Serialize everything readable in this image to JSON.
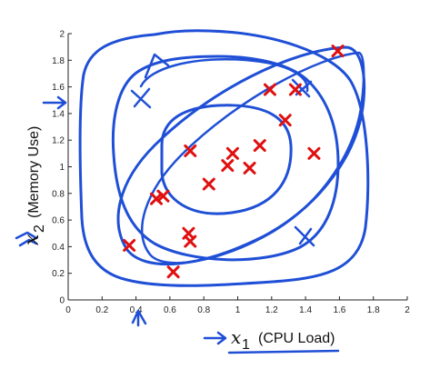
{
  "chart_data": {
    "type": "scatter",
    "xlim": [
      0,
      2
    ],
    "ylim": [
      0,
      2
    ],
    "x_ticks": [
      "0",
      "0.2",
      "0.4",
      "0.6",
      "0.8",
      "1",
      "1.2",
      "1.4",
      "1.6",
      "1.8",
      "2"
    ],
    "y_ticks": [
      "0",
      "0.2",
      "0.4",
      "0.6",
      "0.8",
      "1",
      "1.2",
      "1.4",
      "1.6",
      "1.8",
      "2"
    ],
    "xlabel": {
      "var": "x",
      "sub": "1",
      "text": "(CPU Load)"
    },
    "ylabel": {
      "var": "x",
      "sub": "2",
      "text": "(Memory Use)"
    },
    "marker_color": "#e01010",
    "annotation_color": "#1f4fd6",
    "points": [
      {
        "x": 0.36,
        "y": 0.41
      },
      {
        "x": 0.52,
        "y": 0.76
      },
      {
        "x": 0.56,
        "y": 0.78
      },
      {
        "x": 0.62,
        "y": 0.21
      },
      {
        "x": 0.71,
        "y": 0.5
      },
      {
        "x": 0.72,
        "y": 0.44
      },
      {
        "x": 0.72,
        "y": 1.12
      },
      {
        "x": 0.83,
        "y": 0.87
      },
      {
        "x": 0.94,
        "y": 1.01
      },
      {
        "x": 0.97,
        "y": 1.1
      },
      {
        "x": 1.07,
        "y": 0.99
      },
      {
        "x": 1.13,
        "y": 1.16
      },
      {
        "x": 1.19,
        "y": 1.58
      },
      {
        "x": 1.28,
        "y": 1.35
      },
      {
        "x": 1.34,
        "y": 1.58
      },
      {
        "x": 1.45,
        "y": 1.1
      },
      {
        "x": 1.59,
        "y": 1.87
      }
    ]
  }
}
